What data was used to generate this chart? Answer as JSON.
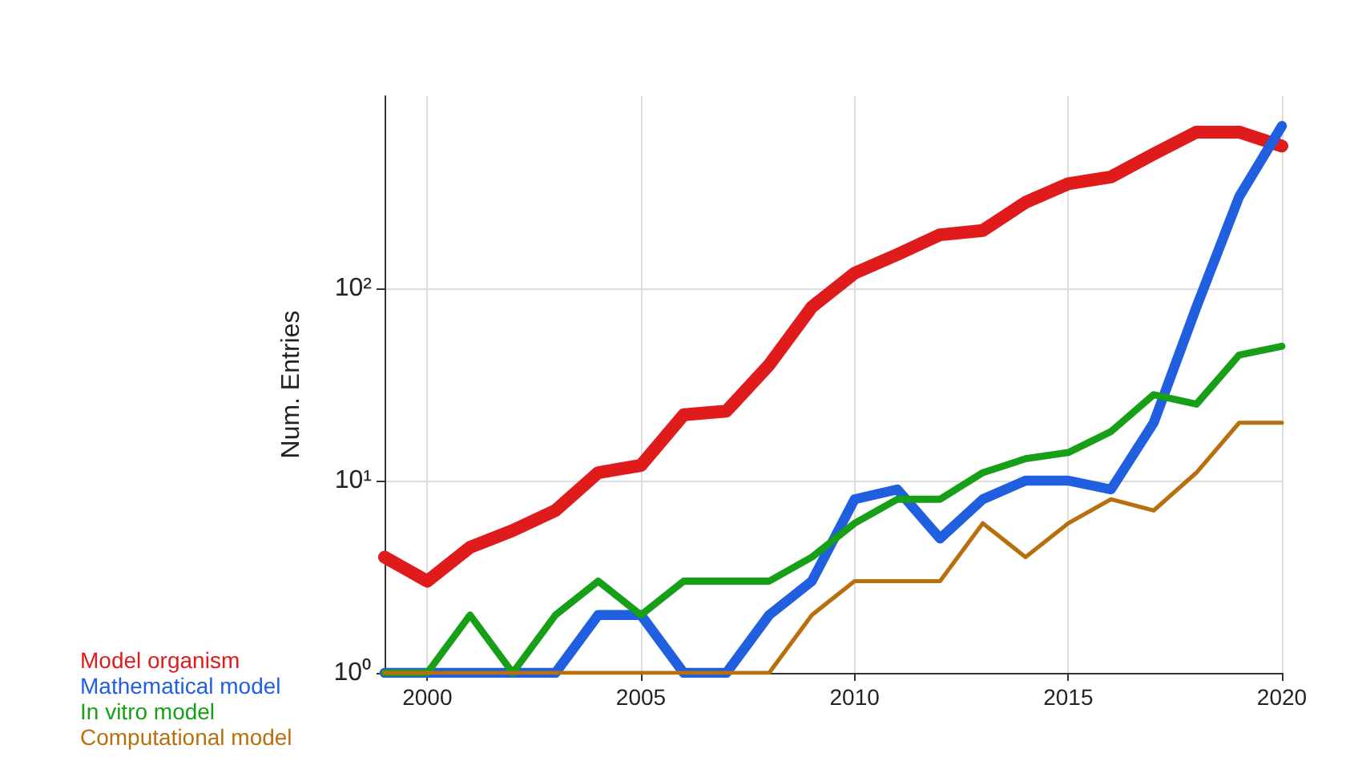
{
  "chart_data": {
    "type": "line",
    "ylabel": "Num. Entries",
    "x": [
      1999,
      2000,
      2001,
      2002,
      2003,
      2004,
      2005,
      2006,
      2007,
      2008,
      2009,
      2010,
      2011,
      2012,
      2013,
      2014,
      2015,
      2016,
      2017,
      2018,
      2019,
      2020
    ],
    "series": [
      {
        "name": "Model organism",
        "color": "#e01b1b",
        "values": [
          4,
          3,
          4.5,
          5.5,
          7,
          11,
          12,
          22,
          23,
          40,
          80,
          120,
          150,
          190,
          200,
          280,
          350,
          380,
          500,
          650,
          650,
          550
        ]
      },
      {
        "name": "Mathematical model",
        "color": "#1f5fe0",
        "values": [
          1,
          1,
          1,
          1,
          1,
          2,
          2,
          1,
          1,
          2,
          3,
          8,
          9,
          5,
          8,
          10,
          10,
          9,
          20,
          80,
          300,
          700
        ]
      },
      {
        "name": "In vitro model",
        "color": "#17a017",
        "values": [
          1,
          1,
          2,
          1,
          2,
          3,
          2,
          3,
          3,
          3,
          4,
          6,
          8,
          8,
          11,
          13,
          14,
          18,
          28,
          25,
          45,
          50
        ]
      },
      {
        "name": "Computational model",
        "color": "#b8700f",
        "values": [
          1,
          1,
          1,
          1,
          1,
          1,
          1,
          1,
          1,
          1,
          2,
          3,
          3,
          3,
          6,
          4,
          6,
          8,
          7,
          11,
          20,
          20
        ]
      }
    ],
    "xlim": [
      1999,
      2020
    ],
    "xticks": [
      2000,
      2005,
      2010,
      2015,
      2020
    ],
    "ylim": [
      1,
      1000
    ],
    "yticks": [
      {
        "value": 1,
        "label": "10⁰"
      },
      {
        "value": 10,
        "label": "10¹"
      },
      {
        "value": 100,
        "label": "10²"
      }
    ],
    "log": "y",
    "grid": true,
    "legend": "bottom left",
    "marker": "none",
    "line_style": "solid"
  }
}
